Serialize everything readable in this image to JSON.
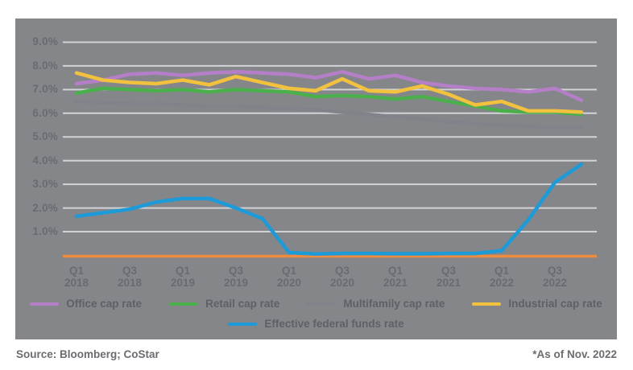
{
  "footer": {
    "source": "Source: Bloomberg; CoStar",
    "note": "*As of Nov. 2022"
  },
  "colors": {
    "panel_background": "#85868a",
    "gridline": "#d2d3d6",
    "axis_line": "#ed8b3e",
    "tick_text": "#6a6b70",
    "legend_text": "#5f6065",
    "footer_text": "#6b6c71"
  },
  "chart_data": {
    "type": "line",
    "title": "",
    "xlabel": "",
    "ylabel": "",
    "ylim": [
      0,
      9.6
    ],
    "grid": "horizontal",
    "legend_position": "bottom",
    "categories": [
      "Q1 2018",
      "Q2 2018",
      "Q3 2018",
      "Q4 2018",
      "Q1 2019",
      "Q2 2019",
      "Q3 2019",
      "Q4 2019",
      "Q1 2020",
      "Q2 2020",
      "Q3 2020",
      "Q4 2020",
      "Q1 2021",
      "Q2 2021",
      "Q3 2021",
      "Q4 2021",
      "Q1 2022",
      "Q2 2022",
      "Q3 2022",
      "Q4 2022"
    ],
    "x_ticks": [
      {
        "line1": "Q1",
        "line2": "2018"
      },
      {
        "line1": "Q3",
        "line2": "2018"
      },
      {
        "line1": "Q1",
        "line2": "2019"
      },
      {
        "line1": "Q3",
        "line2": "2019"
      },
      {
        "line1": "Q1",
        "line2": "2020"
      },
      {
        "line1": "Q3",
        "line2": "2020"
      },
      {
        "line1": "Q1",
        "line2": "2021"
      },
      {
        "line1": "Q3",
        "line2": "2021"
      },
      {
        "line1": "Q1",
        "line2": "2022"
      },
      {
        "line1": "Q3",
        "line2": "2022"
      }
    ],
    "y_ticks": [
      {
        "label": "9.0%",
        "value": 9
      },
      {
        "label": "8.0%",
        "value": 8
      },
      {
        "label": "7.0%",
        "value": 7
      },
      {
        "label": "6.0%",
        "value": 6
      },
      {
        "label": "5.0%",
        "value": 5
      },
      {
        "label": "4.0%",
        "value": 4
      },
      {
        "label": "3.0%",
        "value": 3
      },
      {
        "label": "2.0%",
        "value": 2
      },
      {
        "label": "1.0%",
        "value": 1
      }
    ],
    "series": [
      {
        "id": "office",
        "label": "Office cap rate",
        "color": "#b57fc7",
        "values": [
          7.25,
          7.4,
          7.65,
          7.7,
          7.6,
          7.7,
          7.75,
          7.7,
          7.65,
          7.5,
          7.75,
          7.45,
          7.6,
          7.3,
          7.15,
          7.05,
          7.0,
          6.9,
          7.05,
          6.55
        ]
      },
      {
        "id": "retail",
        "label": "Retail cap rate",
        "color": "#4bb04b",
        "values": [
          6.85,
          7.05,
          7.0,
          6.95,
          7.0,
          6.9,
          7.0,
          6.95,
          6.9,
          6.7,
          6.75,
          6.7,
          6.6,
          6.7,
          6.5,
          6.3,
          6.1,
          6.05,
          6.05,
          5.95
        ]
      },
      {
        "id": "multifamily",
        "label": "Multifamily cap rate",
        "color": "#82838a",
        "values": [
          6.5,
          6.45,
          6.4,
          6.4,
          6.35,
          6.3,
          6.3,
          6.25,
          6.2,
          6.15,
          6.05,
          5.95,
          5.85,
          5.75,
          5.65,
          5.55,
          5.5,
          5.45,
          5.4,
          5.4
        ]
      },
      {
        "id": "industrial",
        "label": "Industrial cap rate",
        "color": "#f2c13d",
        "values": [
          7.7,
          7.4,
          7.3,
          7.25,
          7.4,
          7.2,
          7.55,
          7.3,
          7.05,
          6.95,
          7.45,
          6.95,
          6.9,
          7.15,
          6.8,
          6.35,
          6.5,
          6.1,
          6.1,
          6.05
        ]
      },
      {
        "id": "fed",
        "label": "Effective federal funds rate",
        "color": "#1d9ad8",
        "values": [
          1.65,
          1.8,
          1.95,
          2.25,
          2.4,
          2.4,
          2.0,
          1.55,
          0.12,
          0.06,
          0.08,
          0.08,
          0.07,
          0.07,
          0.08,
          0.08,
          0.2,
          1.5,
          3.08,
          3.85
        ]
      }
    ],
    "legend_rows": [
      [
        0,
        1,
        2,
        3
      ],
      [
        4
      ]
    ]
  }
}
